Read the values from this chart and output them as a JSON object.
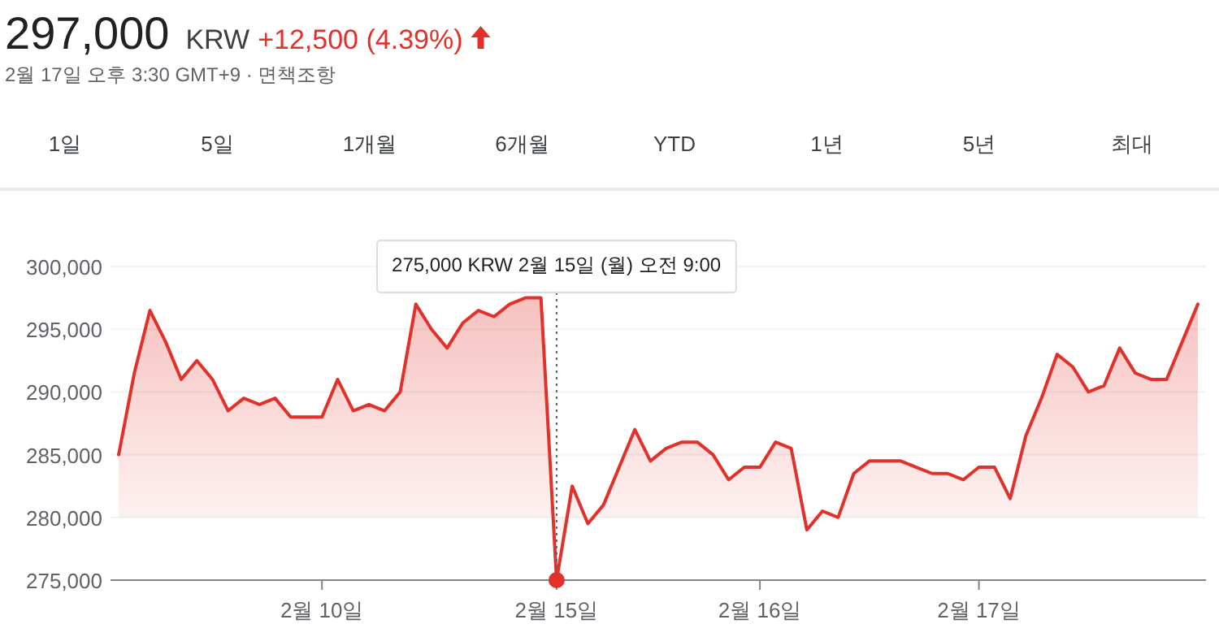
{
  "chart_data": {
    "type": "area",
    "title": "297,000",
    "subtitle": "2월 17일 오후 3:30 GMT+9 · 면책조항",
    "annotations": [
      "KRW",
      "+12,500 (4.39%)",
      "1일",
      "5일",
      "1개월",
      "6개월",
      "YTD",
      "1년",
      "5년",
      "최대",
      {
        "text": "275,000 KRW  2월 15일 (월) 오전 9:00",
        "x": "2월 15일",
        "y": 275000
      }
    ],
    "categories": [
      null,
      null,
      null,
      null,
      null,
      null,
      null,
      null,
      null,
      null,
      null,
      null,
      null,
      "2월 10일",
      null,
      null,
      null,
      null,
      null,
      null,
      null,
      null,
      null,
      null,
      null,
      null,
      null,
      null,
      "2월 15일",
      null,
      null,
      null,
      null,
      null,
      null,
      null,
      null,
      null,
      null,
      null,
      null,
      "2월 16일",
      null,
      null,
      null,
      null,
      null,
      null,
      null,
      null,
      null,
      null,
      null,
      null,
      null,
      "2월 17일",
      null,
      null,
      null,
      null,
      null,
      null,
      null,
      null,
      null,
      null,
      null,
      null,
      null,
      null
    ],
    "series": [
      {
        "color": "#e0312a",
        "values": [
          285000,
          291500,
          296500,
          294000,
          291000,
          292500,
          291000,
          288500,
          289500,
          289000,
          289500,
          288000,
          288000,
          288000,
          291000,
          288500,
          289000,
          288500,
          290000,
          297000,
          295000,
          293500,
          295500,
          296500,
          296000,
          297000,
          297500,
          297500,
          275000,
          282500,
          279500,
          281000,
          284000,
          287000,
          284500,
          285500,
          286000,
          286000,
          285000,
          283000,
          284000,
          284000,
          286000,
          285500,
          279000,
          280500,
          280000,
          283500,
          284500,
          284500,
          284500,
          284000,
          283500,
          283500,
          283000,
          284000,
          284000,
          281500,
          286500,
          289500,
          293000,
          292000,
          290000,
          290500,
          293500,
          291500,
          291000,
          291000,
          294000,
          297000
        ]
      }
    ],
    "ylim": [
      275000,
      300000
    ],
    "yticks": [
      {
        "value": 275000,
        "label": "275,000"
      },
      {
        "value": 280000,
        "label": "280,000"
      },
      {
        "value": 285000,
        "label": "285,000"
      },
      {
        "value": 290000,
        "label": "290,000"
      },
      {
        "value": 295000,
        "label": "295,000"
      },
      {
        "value": 300000,
        "label": "300,000"
      }
    ],
    "grid": "y"
  }
}
